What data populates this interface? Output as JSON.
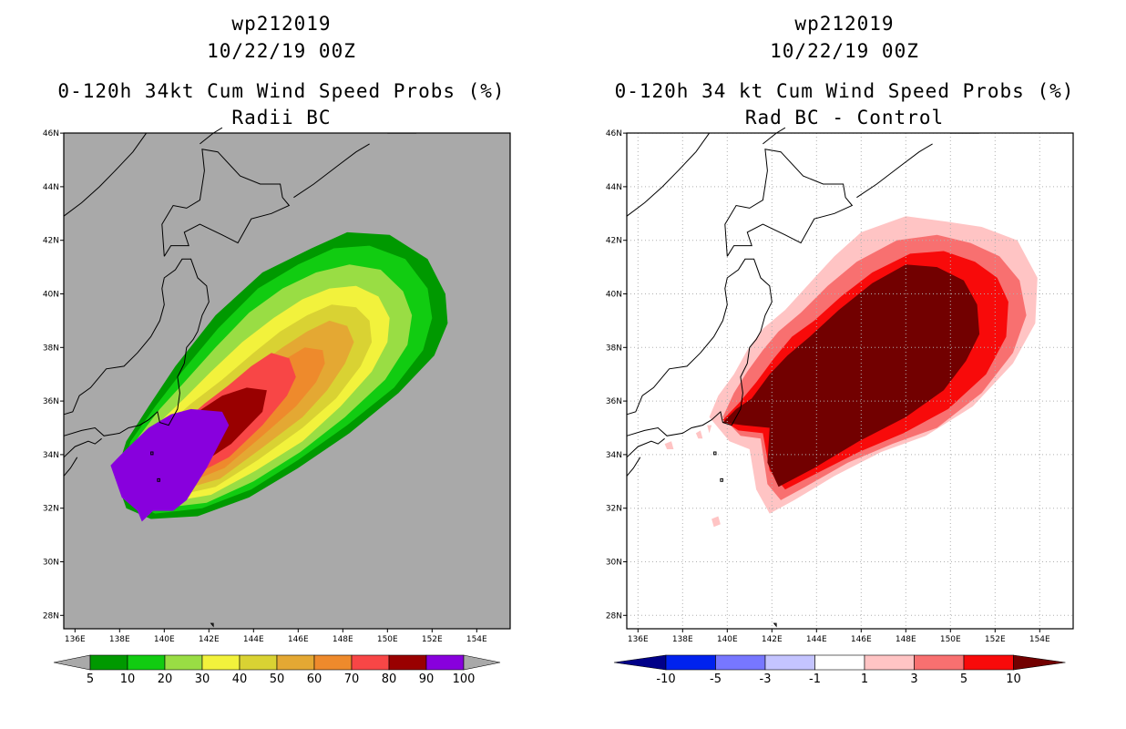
{
  "charts": [
    {
      "id": "left",
      "storm": "wp212019",
      "datetime": "10/22/19 00Z",
      "title": "0-120h 34kt Cum Wind Speed Probs (%)",
      "subtitle": "Radii BC",
      "background": "#a9a9a9"
    },
    {
      "id": "right",
      "storm": "wp212019",
      "datetime": "10/22/19 00Z",
      "title": "0-120h 34 kt Cum Wind Speed Probs (%)",
      "subtitle": "Rad BC - Control",
      "background": "#ffffff"
    }
  ],
  "chart_data": [
    {
      "type": "heatmap",
      "title": "0-120h 34kt Cum Wind Speed Probs (%)",
      "subtitle": "Radii BC",
      "x_range": [
        135.5,
        155
      ],
      "y_range": [
        27.5,
        46
      ],
      "x_ticks": [
        "136E",
        "138E",
        "140E",
        "142E",
        "144E",
        "146E",
        "148E",
        "150E",
        "152E",
        "154E"
      ],
      "y_ticks": [
        "28N",
        "30N",
        "32N",
        "34N",
        "36N",
        "38N",
        "40N",
        "42N",
        "44N",
        "46N"
      ],
      "colorbar": {
        "levels": [
          "5",
          "10",
          "20",
          "30",
          "40",
          "50",
          "60",
          "70",
          "80",
          "90",
          "100"
        ],
        "colors": [
          "#009900",
          "#11cc11",
          "#99dd44",
          "#f2f23c",
          "#d9d233",
          "#e4a833",
          "#ee8a2c",
          "#f84646",
          "#990000",
          "#8800dd"
        ]
      },
      "contours": [
        {
          "level": 5,
          "color": "#009900"
        },
        {
          "level": 10,
          "color": "#11cc11"
        },
        {
          "level": 20,
          "color": "#99dd44"
        },
        {
          "level": 30,
          "color": "#f2f23c"
        },
        {
          "level": 40,
          "color": "#d9d233"
        },
        {
          "level": 50,
          "color": "#e4a833"
        },
        {
          "level": 60,
          "color": "#ee8a2c"
        },
        {
          "level": 70,
          "color": "#f84646"
        },
        {
          "level": 80,
          "color": "#990000"
        },
        {
          "level": 90,
          "color": "#8800dd"
        }
      ]
    },
    {
      "type": "heatmap",
      "title": "0-120h 34 kt Cum Wind Speed Probs (%)",
      "subtitle": "Rad BC - Control",
      "x_range": [
        135.5,
        155
      ],
      "y_range": [
        27.5,
        46
      ],
      "x_ticks": [
        "136E",
        "138E",
        "140E",
        "142E",
        "144E",
        "146E",
        "148E",
        "150E",
        "152E",
        "154E"
      ],
      "y_ticks": [
        "28N",
        "30N",
        "32N",
        "34N",
        "36N",
        "38N",
        "40N",
        "42N",
        "44N",
        "46N"
      ],
      "grid": true,
      "colorbar": {
        "levels": [
          "-10",
          "-5",
          "-3",
          "-1",
          "1",
          "3",
          "5",
          "10"
        ],
        "colors": [
          "#000088",
          "#0022ee",
          "#7777ff",
          "#c4c4ff",
          "#ffffff",
          "#ffc4c4",
          "#f87070",
          "#f80a0a",
          "#720000"
        ]
      },
      "contours": [
        {
          "level": 1,
          "color": "#ffc4c4"
        },
        {
          "level": 3,
          "color": "#f87070"
        },
        {
          "level": 5,
          "color": "#f80a0a"
        },
        {
          "level": 10,
          "color": "#720000"
        }
      ]
    }
  ]
}
